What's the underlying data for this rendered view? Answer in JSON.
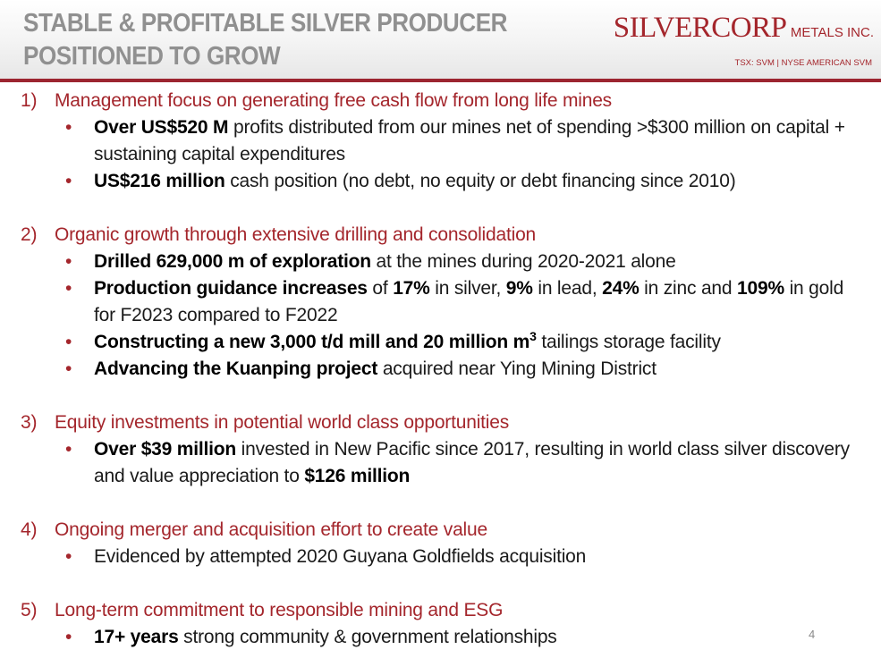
{
  "header": {
    "title_line1": "STABLE & PROFITABLE SILVER PRODUCER",
    "title_line2": "POSITIONED TO GROW",
    "logo_big": "SILVERCORP",
    "logo_small": "METALS INC.",
    "logo_tagline": "TSX: SVM | NYSE AMERICAN SVM"
  },
  "sections": [
    {
      "number": "1)",
      "heading": "Management focus on generating free cash flow from long life mines",
      "bullets": [
        {
          "bold": "Over US$520 M",
          "text": " profits distributed from our mines net of spending >$300 million on capital + sustaining capital expenditures"
        },
        {
          "bold": "US$216 million",
          "text": " cash position (no debt, no equity or debt financing since 2010)"
        }
      ]
    },
    {
      "number": "2)",
      "heading": "Organic growth through extensive drilling and consolidation",
      "bullets": [
        {
          "bold": "Drilled 629,000 m of exploration",
          "text": " at the mines during 2020-2021 alone"
        },
        {
          "bold": "Production guidance increases",
          "t1": " of ",
          "b2": "17%",
          "t2": " in silver, ",
          "b3": "9%",
          "t3": " in lead, ",
          "b4": "24%",
          "t4": " in zinc and ",
          "b5": "109%",
          "t5": " in gold for F2023 compared to F2022"
        },
        {
          "bold": "Constructing a new 3,000 t/d mill and 20 million m",
          "sup": "3",
          "text": " tailings storage facility"
        },
        {
          "bold": "Advancing the Kuanping project",
          "text": " acquired near Ying Mining District"
        }
      ]
    },
    {
      "number": "3)",
      "heading": "Equity investments in potential world class opportunities",
      "bullets": [
        {
          "bold": "Over $39 million",
          "text": " invested in New Pacific since 2017, resulting in world class silver discovery and value appreciation to ",
          "bold2": "$126 million"
        }
      ]
    },
    {
      "number": "4)",
      "heading": "Ongoing merger and acquisition effort to create value",
      "bullets": [
        {
          "text": "Evidenced by attempted 2020 Guyana Goldfields acquisition"
        }
      ]
    },
    {
      "number": "5)",
      "heading": "Long-term commitment to responsible mining and ESG",
      "bullets": [
        {
          "bold": "17+ years",
          "text": " strong community & government relationships"
        }
      ]
    }
  ],
  "page_number": "4",
  "colors": {
    "accent": "#a4262c",
    "title_gray": "#909090",
    "rule": "#9c2530"
  }
}
